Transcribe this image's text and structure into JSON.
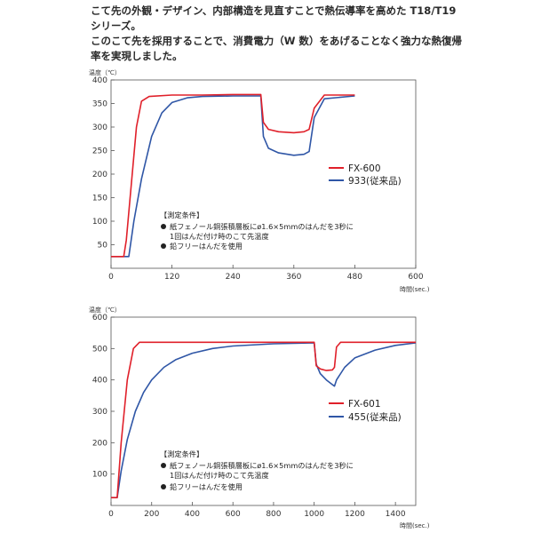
{
  "intro": {
    "line1": "こて先の外観・デザイン、内部構造を見直すことで熱伝導率を高めた T18/T19",
    "line2": "シリーズ。",
    "line3": "このこて先を採用することで、消費電力（W 数）をあげることなく強力な熱復帰",
    "line4": "率を実現しました。"
  },
  "colors": {
    "red": "#e0202a",
    "blue": "#2f56a6",
    "axis": "#555555"
  },
  "conditions": {
    "title": "【測定条件】",
    "bullet1a": "紙フェノール銅張積層板にø1.6×5mmのはんだを3秒に",
    "bullet1b": "1回はんだ付け時のこて先温度",
    "bullet2": "鉛フリーはんだを使用"
  },
  "chart_data": [
    {
      "type": "line",
      "ylabel": "温度（℃）",
      "xlabel": "時間(sec.)",
      "xlim": [
        0,
        600
      ],
      "ylim": [
        0,
        400
      ],
      "xticks": [
        "0",
        "120",
        "240",
        "360",
        "480",
        "600"
      ],
      "yticks": [
        "50",
        "100",
        "150",
        "200",
        "250",
        "300",
        "350",
        "400"
      ],
      "series": [
        {
          "name": "FX-600",
          "color": "#e0202a",
          "x": [
            0,
            25,
            30,
            40,
            50,
            60,
            75,
            120,
            180,
            240,
            295,
            300,
            310,
            330,
            360,
            380,
            390,
            400,
            420,
            480
          ],
          "y": [
            25,
            25,
            60,
            180,
            300,
            355,
            365,
            368,
            368,
            369,
            369,
            310,
            295,
            290,
            288,
            290,
            295,
            340,
            368,
            368
          ]
        },
        {
          "name": "933(従来品)",
          "color": "#2f56a6",
          "x": [
            0,
            35,
            45,
            60,
            80,
            100,
            120,
            150,
            180,
            240,
            295,
            300,
            310,
            330,
            360,
            380,
            390,
            400,
            420,
            480
          ],
          "y": [
            25,
            25,
            100,
            190,
            280,
            330,
            352,
            362,
            365,
            366,
            366,
            280,
            255,
            245,
            240,
            242,
            248,
            320,
            360,
            366
          ]
        }
      ]
    },
    {
      "type": "line",
      "ylabel": "温度（℃）",
      "xlabel": "時間(sec.)",
      "xlim": [
        0,
        1500
      ],
      "ylim": [
        0,
        600
      ],
      "xticks": [
        "0",
        "200",
        "400",
        "600",
        "800",
        "1000",
        "1200",
        "1400"
      ],
      "yticks": [
        "100",
        "200",
        "300",
        "400",
        "500",
        "600"
      ],
      "series": [
        {
          "name": "FX-601",
          "color": "#e0202a",
          "x": [
            0,
            30,
            50,
            80,
            110,
            140,
            200,
            400,
            600,
            800,
            1000,
            1010,
            1030,
            1060,
            1090,
            1100,
            1110,
            1130,
            1200,
            1300,
            1500
          ],
          "y": [
            25,
            25,
            200,
            400,
            500,
            520,
            520,
            520,
            520,
            520,
            520,
            445,
            435,
            430,
            432,
            440,
            505,
            520,
            520,
            520,
            520
          ]
        },
        {
          "name": "455(従来品)",
          "color": "#2f56a6",
          "x": [
            0,
            30,
            50,
            80,
            120,
            160,
            200,
            260,
            320,
            400,
            500,
            600,
            800,
            1000,
            1010,
            1030,
            1060,
            1090,
            1100,
            1110,
            1150,
            1200,
            1300,
            1400,
            1500
          ],
          "y": [
            25,
            25,
            110,
            210,
            300,
            360,
            400,
            440,
            465,
            485,
            500,
            508,
            515,
            518,
            450,
            420,
            400,
            385,
            380,
            400,
            440,
            470,
            495,
            510,
            518
          ]
        }
      ]
    }
  ]
}
